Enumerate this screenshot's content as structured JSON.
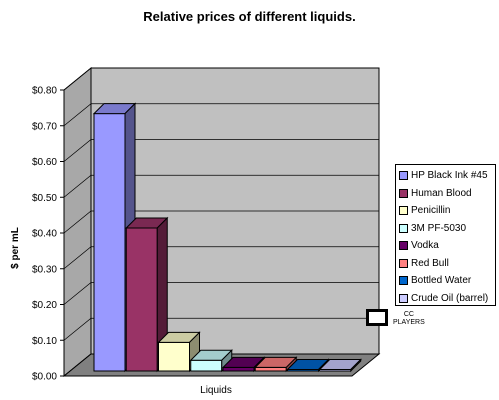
{
  "chart_data": {
    "type": "bar",
    "title": "Relative prices of different liquids.",
    "xlabel": "Liquids",
    "ylabel": "$ per mL",
    "ylim": [
      0,
      0.8
    ],
    "yticks": [
      "$0.00",
      "$0.10",
      "$0.20",
      "$0.30",
      "$0.40",
      "$0.50",
      "$0.60",
      "$0.70",
      "$0.80"
    ],
    "grid": true,
    "legend_position": "right",
    "series": [
      {
        "name": "HP Black Ink #45",
        "value": 0.72,
        "color": "#9999ff"
      },
      {
        "name": "Human Blood",
        "value": 0.4,
        "color": "#993366"
      },
      {
        "name": "Penicillin",
        "value": 0.08,
        "color": "#ffffcc"
      },
      {
        "name": "3M PF-5030",
        "value": 0.03,
        "color": "#ccffff"
      },
      {
        "name": "Vodka",
        "value": 0.01,
        "color": "#660066"
      },
      {
        "name": "Red Bull",
        "value": 0.01,
        "color": "#ff8080"
      },
      {
        "name": "Bottled Water",
        "value": 0.002,
        "color": "#0066cc"
      },
      {
        "name": "Crude Oil (barrel)",
        "value": 0.001,
        "color": "#ccccff"
      }
    ],
    "wall_color": "#c0c0c0"
  },
  "watermark": {
    "line1": "CC",
    "line2": "PLAYERS"
  }
}
